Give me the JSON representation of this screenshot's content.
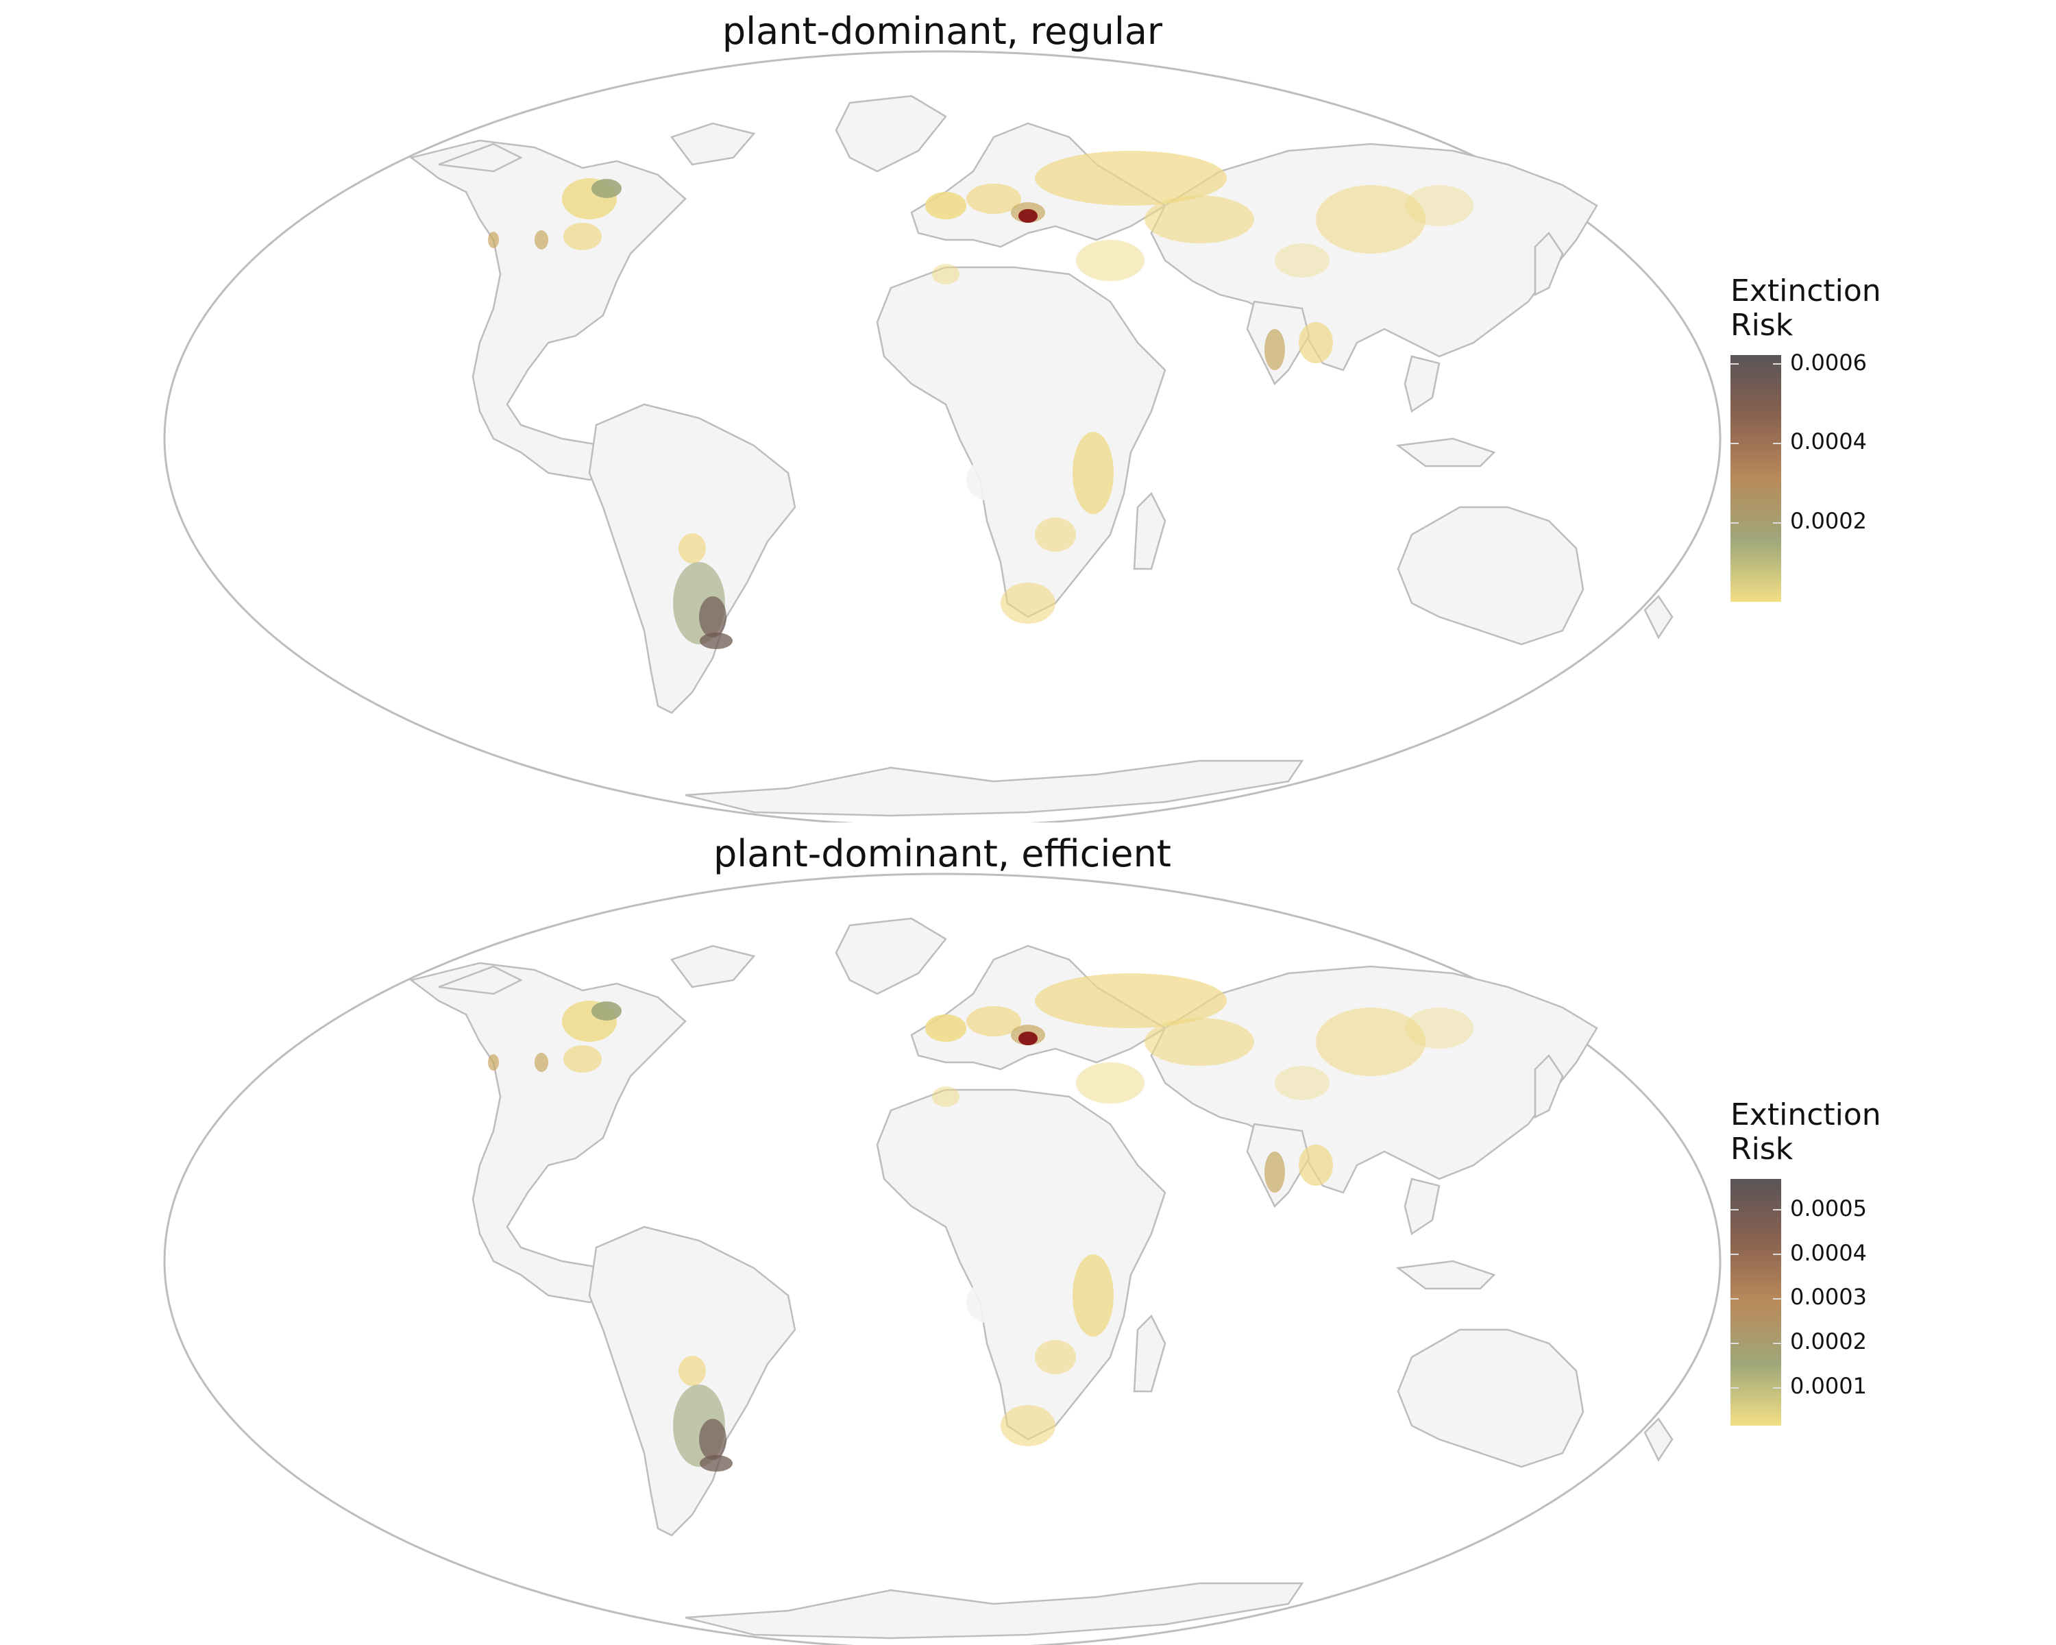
{
  "panels": [
    {
      "title": "plant-dominant, regular",
      "legend": {
        "title": "Extinction\nRisk",
        "ticks": [
          "0.0006",
          "0.0004",
          "0.0002"
        ],
        "tick_values": [
          0.0006,
          0.0004,
          0.0002
        ],
        "max": 0.00062
      }
    },
    {
      "title": "plant-dominant, efficient",
      "legend": {
        "title": "Extinction\nRisk",
        "ticks": [
          "0.0005",
          "0.0004",
          "0.0003",
          "0.0002",
          "0.0001"
        ],
        "tick_values": [
          0.0005,
          0.0004,
          0.0003,
          0.0002,
          0.0001
        ],
        "max": 0.00056
      }
    }
  ],
  "map": {
    "projection": "Mollweide",
    "border_color": "#bdbdbd",
    "land_color": "#f4f4f4",
    "colorscale": [
      "#f2df85",
      "#9fa77a",
      "#b98a5a",
      "#8a6250",
      "#5a5457"
    ],
    "hotspot_color": "#8b1a1a"
  }
}
